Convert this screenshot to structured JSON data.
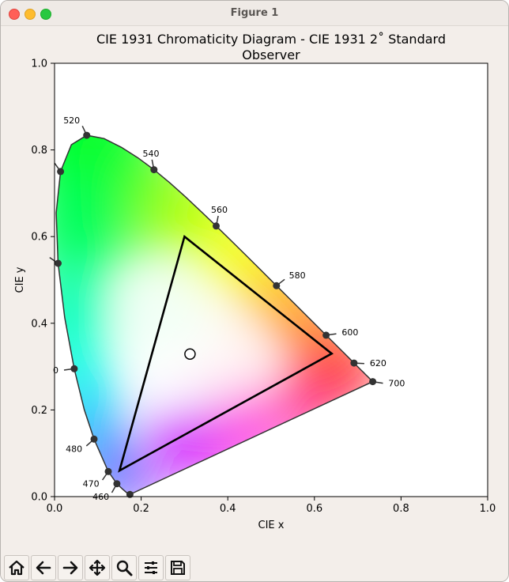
{
  "window": {
    "title": "Figure 1"
  },
  "chart_data": {
    "type": "scatter",
    "title": "CIE 1931 Chromaticity Diagram - CIE 1931 2˚  Standard\nObserver",
    "xlabel": "CIE x",
    "ylabel": "CIE y",
    "xlim": [
      0.0,
      1.0
    ],
    "ylim": [
      0.0,
      1.0
    ],
    "xticks": [
      "0.0",
      "0.2",
      "0.4",
      "0.6",
      "0.8",
      "1.0"
    ],
    "yticks": [
      "0.0",
      "0.2",
      "0.4",
      "0.6",
      "0.8",
      "1.0"
    ],
    "spectral_locus": [
      [
        0.1741,
        0.005
      ],
      [
        0.1738,
        0.0049
      ],
      [
        0.1733,
        0.0048
      ],
      [
        0.1726,
        0.0048
      ],
      [
        0.1714,
        0.0051
      ],
      [
        0.1689,
        0.0069
      ],
      [
        0.1644,
        0.0109
      ],
      [
        0.1566,
        0.0177
      ],
      [
        0.144,
        0.0297
      ],
      [
        0.1241,
        0.0578
      ],
      [
        0.0913,
        0.1327
      ],
      [
        0.0687,
        0.2007
      ],
      [
        0.0454,
        0.295
      ],
      [
        0.0235,
        0.4127
      ],
      [
        0.0082,
        0.5384
      ],
      [
        0.0039,
        0.6548
      ],
      [
        0.0139,
        0.7502
      ],
      [
        0.0389,
        0.812
      ],
      [
        0.0743,
        0.8338
      ],
      [
        0.1142,
        0.8262
      ],
      [
        0.1547,
        0.8059
      ],
      [
        0.1929,
        0.7816
      ],
      [
        0.2296,
        0.7543
      ],
      [
        0.2658,
        0.7243
      ],
      [
        0.3016,
        0.6923
      ],
      [
        0.3373,
        0.6589
      ],
      [
        0.3731,
        0.6245
      ],
      [
        0.4087,
        0.5896
      ],
      [
        0.4441,
        0.5547
      ],
      [
        0.4788,
        0.5202
      ],
      [
        0.5125,
        0.4866
      ],
      [
        0.5448,
        0.4544
      ],
      [
        0.5752,
        0.4242
      ],
      [
        0.6029,
        0.3965
      ],
      [
        0.627,
        0.3725
      ],
      [
        0.6482,
        0.3514
      ],
      [
        0.6658,
        0.334
      ],
      [
        0.6801,
        0.3197
      ],
      [
        0.6915,
        0.3083
      ],
      [
        0.7006,
        0.2993
      ],
      [
        0.7079,
        0.292
      ],
      [
        0.714,
        0.2859
      ],
      [
        0.719,
        0.2809
      ],
      [
        0.723,
        0.277
      ],
      [
        0.726,
        0.274
      ],
      [
        0.7283,
        0.2717
      ],
      [
        0.73,
        0.27
      ],
      [
        0.7311,
        0.2689
      ],
      [
        0.732,
        0.268
      ],
      [
        0.7327,
        0.2673
      ],
      [
        0.7334,
        0.2666
      ],
      [
        0.734,
        0.266
      ],
      [
        0.7344,
        0.2656
      ],
      [
        0.7346,
        0.2654
      ],
      [
        0.7347,
        0.2653
      ]
    ],
    "wavelength_markers": [
      {
        "label": "460",
        "x": 0.144,
        "y": 0.0297
      },
      {
        "label": "470",
        "x": 0.1241,
        "y": 0.0578
      },
      {
        "label": "480",
        "x": 0.0913,
        "y": 0.1327
      },
      {
        "label": "0",
        "x": 0.0454,
        "y": 0.295
      },
      {
        "label": "",
        "x": 0.0082,
        "y": 0.5384
      },
      {
        "label": "",
        "x": 0.0139,
        "y": 0.7502
      },
      {
        "label": "520",
        "x": 0.0743,
        "y": 0.8338
      },
      {
        "label": "540",
        "x": 0.2296,
        "y": 0.7543
      },
      {
        "label": "560",
        "x": 0.3731,
        "y": 0.6245
      },
      {
        "label": "580",
        "x": 0.5125,
        "y": 0.4866
      },
      {
        "label": "600",
        "x": 0.627,
        "y": 0.3725
      },
      {
        "label": "620",
        "x": 0.6915,
        "y": 0.3083
      },
      {
        "label": "700",
        "x": 0.7347,
        "y": 0.2653
      }
    ],
    "extra_points": [
      {
        "x": 0.1741,
        "y": 0.005
      }
    ],
    "gamut_triangle": [
      [
        0.3,
        0.6
      ],
      [
        0.64,
        0.33
      ],
      [
        0.15,
        0.06
      ]
    ],
    "whitepoint": {
      "x": 0.3127,
      "y": 0.329
    }
  },
  "toolbar": {
    "items": [
      {
        "name": "home-button",
        "icon": "home-icon"
      },
      {
        "name": "back-button",
        "icon": "arrow-left-icon"
      },
      {
        "name": "forward-button",
        "icon": "arrow-right-icon"
      },
      {
        "name": "pan-button",
        "icon": "move-icon"
      },
      {
        "name": "zoom-button",
        "icon": "magnifier-icon"
      },
      {
        "name": "configure-subplots-button",
        "icon": "sliders-icon"
      },
      {
        "name": "save-button",
        "icon": "floppy-icon"
      }
    ]
  }
}
